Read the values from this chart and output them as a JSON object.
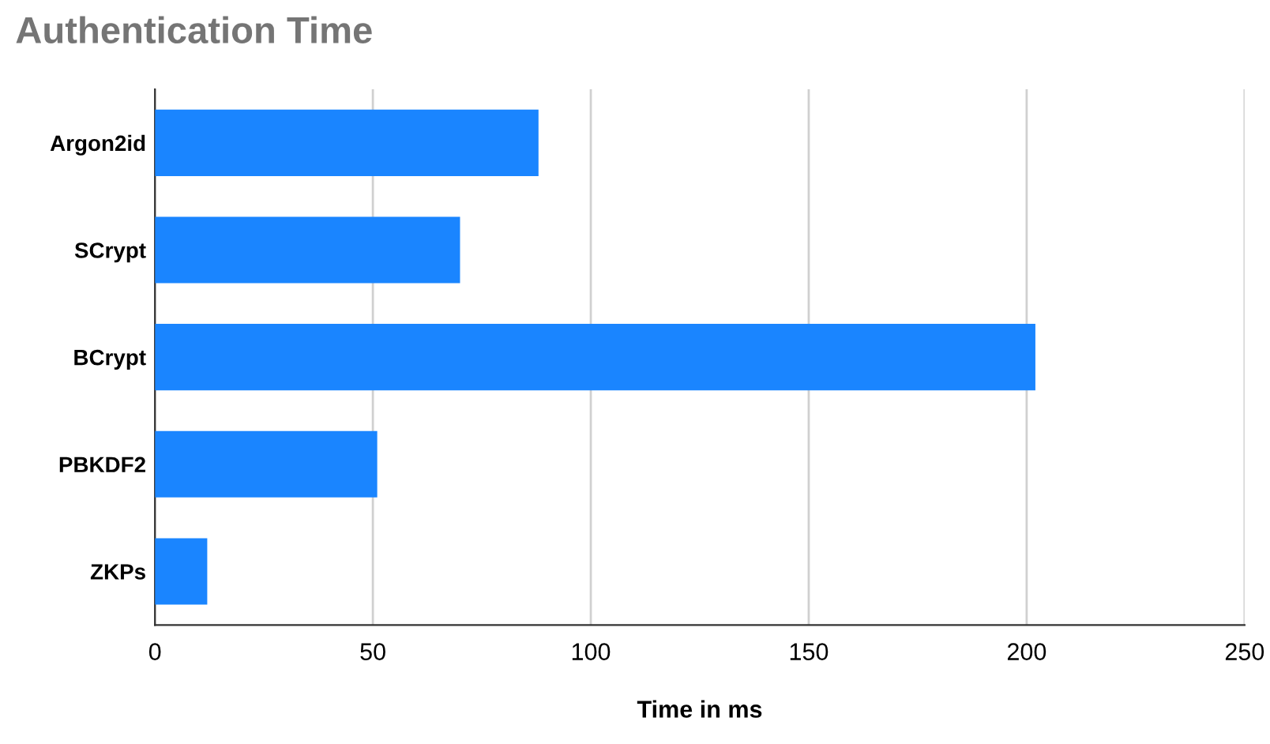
{
  "chart_data": {
    "type": "bar",
    "orientation": "horizontal",
    "title": "Authentication Time",
    "xlabel": "Time in ms",
    "categories": [
      "Argon2id",
      "SCrypt",
      "BCrypt",
      "PBKDF2",
      "ZKPs"
    ],
    "values": [
      88,
      70,
      202,
      51,
      12
    ],
    "color": "#1a85ff",
    "xlim": [
      0,
      250
    ],
    "xticks": [
      0,
      50,
      100,
      150,
      200,
      250
    ],
    "grid": "x"
  }
}
